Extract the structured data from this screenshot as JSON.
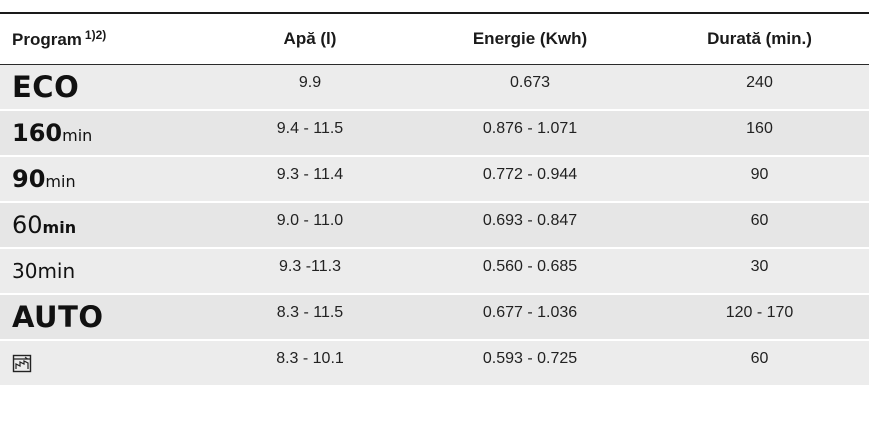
{
  "header": {
    "program": "Program",
    "program_note": "1)2)",
    "water": "Apă (l)",
    "energy": "Energie (Kwh)",
    "duration": "Durată (min.)"
  },
  "rows": [
    {
      "program": "ECO",
      "water": "9.9",
      "energy": "0.673",
      "duration": "240"
    },
    {
      "program_num": "160",
      "program_unit": "min",
      "water": "9.4 - 11.5",
      "energy": "0.876 - 1.071",
      "duration": "160"
    },
    {
      "program_num": "90",
      "program_unit": "min",
      "water": "9.3 - 11.4",
      "energy": "0.772 - 0.944",
      "duration": "90"
    },
    {
      "program_num": "60",
      "program_unit": "min",
      "water": "9.0 - 11.0",
      "energy": "0.693 - 0.847",
      "duration": "60"
    },
    {
      "program_num": "30",
      "program_unit": "min",
      "water": "9.3 -11.3",
      "energy": "0.560 - 0.685",
      "duration": "30"
    },
    {
      "program": "AUTO",
      "water": "8.3 - 11.5",
      "energy": "0.677 - 1.036",
      "duration": "120 - 170"
    },
    {
      "program_icon": "machine-care-icon",
      "water": "8.3 - 10.1",
      "energy": "0.593 - 0.725",
      "duration": "60"
    }
  ]
}
